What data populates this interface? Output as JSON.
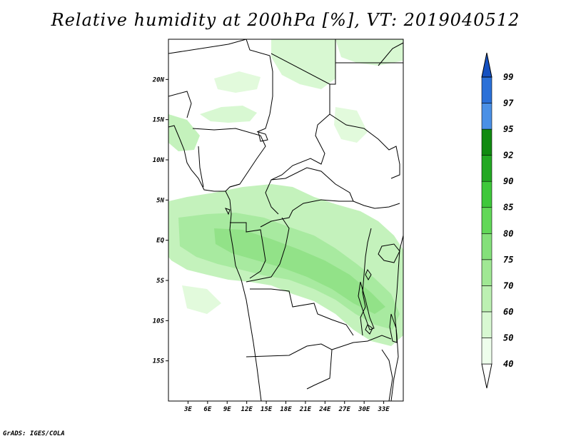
{
  "title": "Relative humidity at 200hPa [%], VT: 2019040512",
  "credit": "GrADS: IGES/COLA",
  "map": {
    "lon_range": [
      0,
      36
    ],
    "lat_range": [
      -20,
      25
    ],
    "lat_ticks": [
      "20N",
      "15N",
      "10N",
      "5N",
      "EQ",
      "5S",
      "10S",
      "15S"
    ],
    "lon_ticks": [
      "3E",
      "6E",
      "9E",
      "12E",
      "15E",
      "18E",
      "21E",
      "24E",
      "27E",
      "30E",
      "33E"
    ],
    "coastline_color": "#000000"
  },
  "colorbar": {
    "levels": [
      "40",
      "50",
      "60",
      "70",
      "75",
      "80",
      "85",
      "90",
      "92",
      "95",
      "97",
      "99"
    ],
    "colors": [
      "#eefeec",
      "#d8f8d2",
      "#bcf0b2",
      "#a0e894",
      "#84e07a",
      "#62d858",
      "#3ec83a",
      "#22a822",
      "#108a10",
      "#4a90e6",
      "#2a70d8",
      "#1450c0"
    ]
  }
}
